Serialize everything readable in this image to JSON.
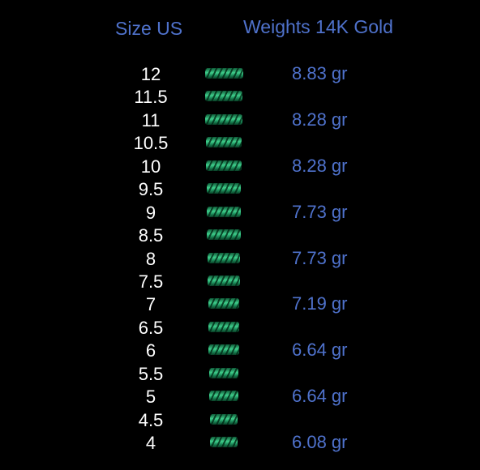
{
  "header": {
    "size": "Size US",
    "weight": "Weights 14K Gold"
  },
  "rows": [
    {
      "size": "12",
      "weight": "8.83 gr"
    },
    {
      "size": "11.5"
    },
    {
      "size": "11",
      "weight": "8.28 gr"
    },
    {
      "size": "10.5"
    },
    {
      "size": "10",
      "weight": "8.28 gr"
    },
    {
      "size": "9.5"
    },
    {
      "size": "9",
      "weight": "7.73 gr"
    },
    {
      "size": "8.5"
    },
    {
      "size": "8",
      "weight": "7.73 gr"
    },
    {
      "size": "7.5"
    },
    {
      "size": "7",
      "weight": "7.19 gr"
    },
    {
      "size": "6.5"
    },
    {
      "size": "6",
      "weight": "6.64 gr"
    },
    {
      "size": "5.5"
    },
    {
      "size": "5",
      "weight": "6.64 gr"
    },
    {
      "size": "4.5"
    },
    {
      "size": "4",
      "weight": "6.08 gr"
    }
  ]
}
